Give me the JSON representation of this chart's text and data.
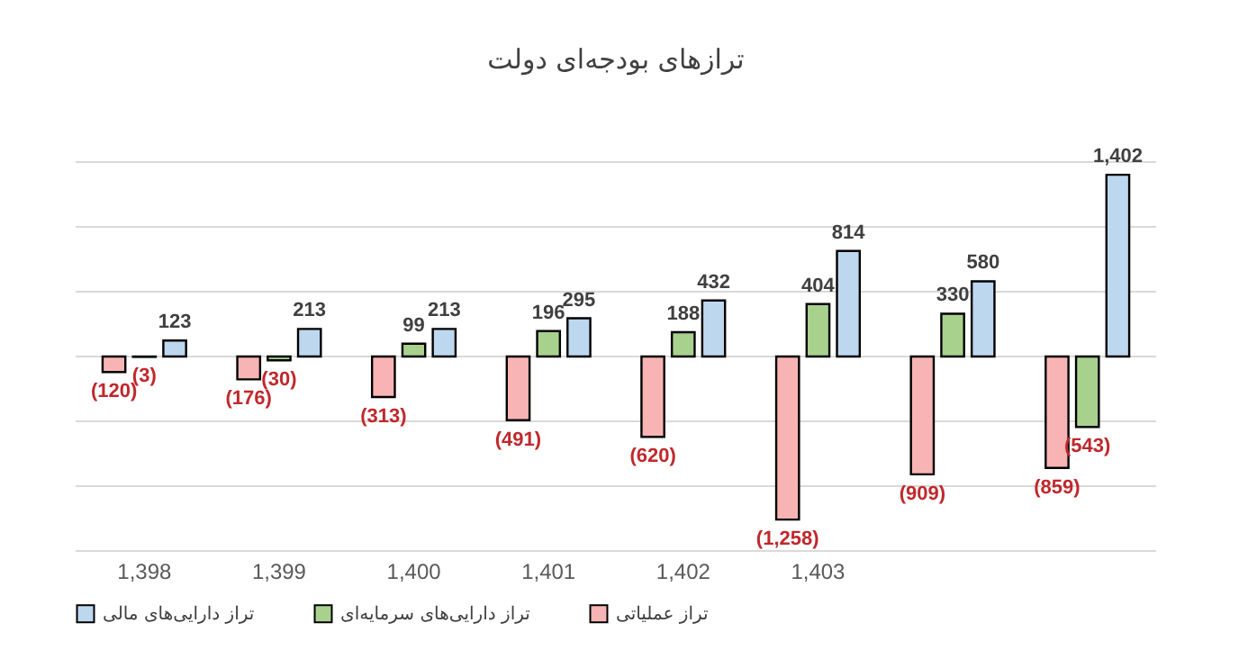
{
  "chart_data": {
    "type": "bar",
    "title": "ترازهای بودجه‌ای دولت",
    "categories": [
      "1,398",
      "1,399",
      "1,400",
      "1,401",
      "1,402",
      "1,403",
      null,
      null
    ],
    "series": [
      {
        "name": "تراز عملیاتی",
        "color": "#f8b4b4",
        "values": [
          -120,
          -176,
          -313,
          -491,
          -620,
          -1258,
          -909,
          -859
        ],
        "value_labels": [
          "(120)",
          "(176)",
          "(313)",
          "(491)",
          "(620)",
          "(1,258)",
          "(909)",
          "(859)"
        ]
      },
      {
        "name": "تراز دارایی‌های سرمایه‌ای",
        "color": "#a9d18e",
        "values": [
          -3,
          -30,
          99,
          196,
          188,
          404,
          330,
          -543
        ],
        "value_labels": [
          "(3)",
          "(30)",
          "99",
          "196",
          "188",
          "404",
          "330",
          "(543)"
        ]
      },
      {
        "name": "تراز دارایی‌های مالی",
        "color": "#bdd7ee",
        "values": [
          123,
          213,
          213,
          295,
          432,
          814,
          580,
          1402
        ],
        "value_labels": [
          "123",
          "213",
          "213",
          "295",
          "432",
          "814",
          "580",
          "1,402"
        ]
      }
    ],
    "ylim": [
      -1500,
      1500
    ],
    "yticks": [
      {
        "value": -1500,
        "label": null
      },
      {
        "value": -1000,
        "label": null
      },
      {
        "value": -500,
        "label": null
      },
      {
        "value": 0,
        "label": null
      },
      {
        "value": 500,
        "label": null
      },
      {
        "value": 1000,
        "label": null
      },
      {
        "value": 1500,
        "label": null
      }
    ],
    "grid": "y",
    "tick_labels": "x",
    "legend": "bottom"
  }
}
